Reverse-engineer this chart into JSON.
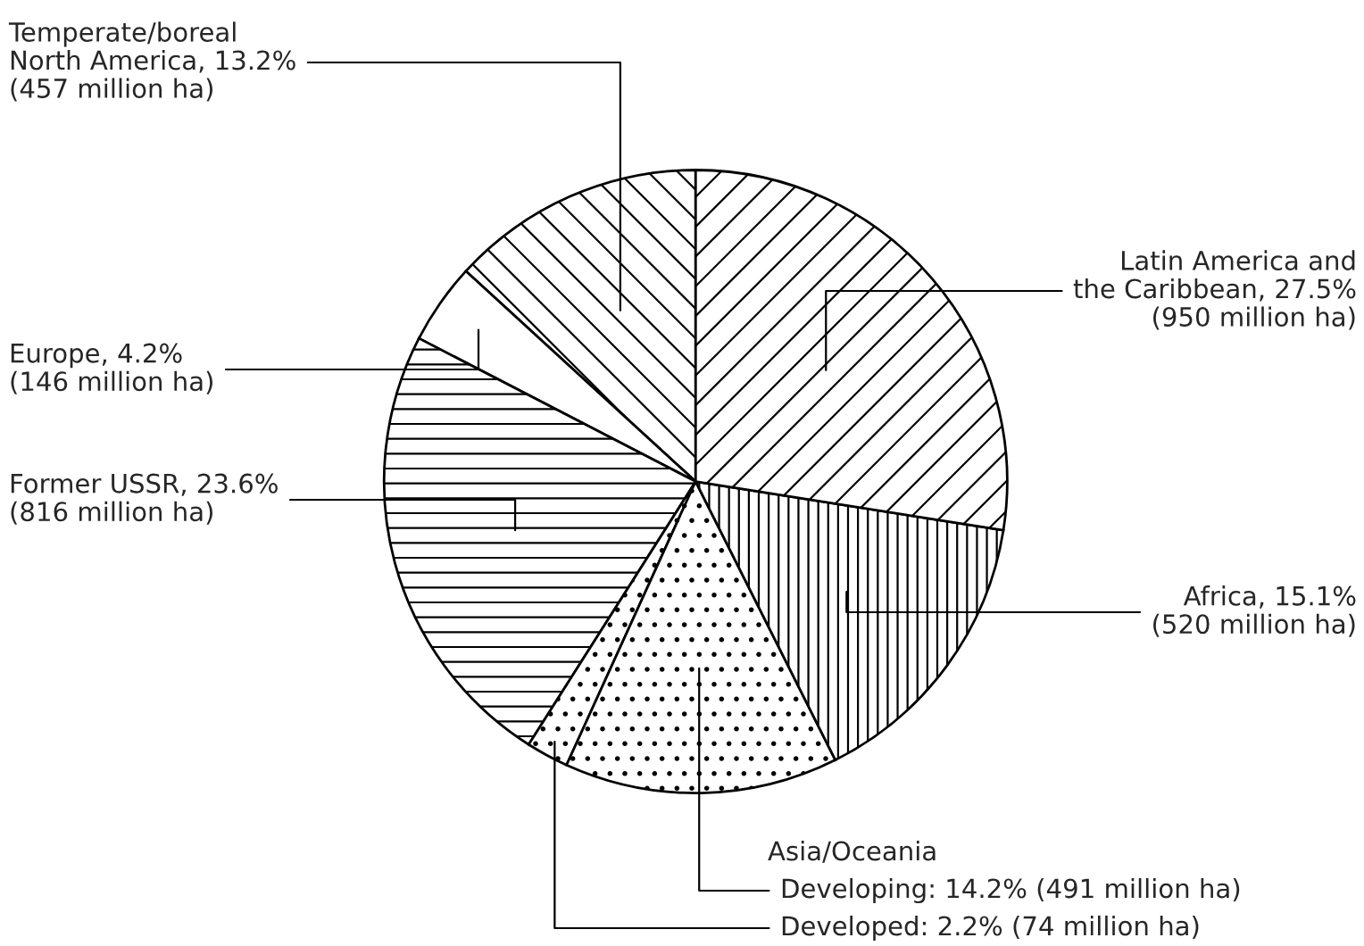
{
  "chart_data": {
    "type": "pie",
    "categories": [
      "Latin America and\nthe Caribbean, 27.5%\n(950 million ha)",
      "Africa, 15.1%\n(520 million ha)",
      "Developing: 14.2% (491 million ha)",
      "Developed: 2.2% (74 million ha)",
      "Former USSR, 23.6%\n(816 million ha)",
      "Europe, 4.2%\n(146 million ha)",
      "Temperate/boreal\nNorth America, 13.2%\n(457 million ha)"
    ],
    "values": [
      27.5,
      15.1,
      14.2,
      2.2,
      23.6,
      4.2,
      13.2
    ],
    "annotations": [
      "Asia/Oceania"
    ]
  }
}
